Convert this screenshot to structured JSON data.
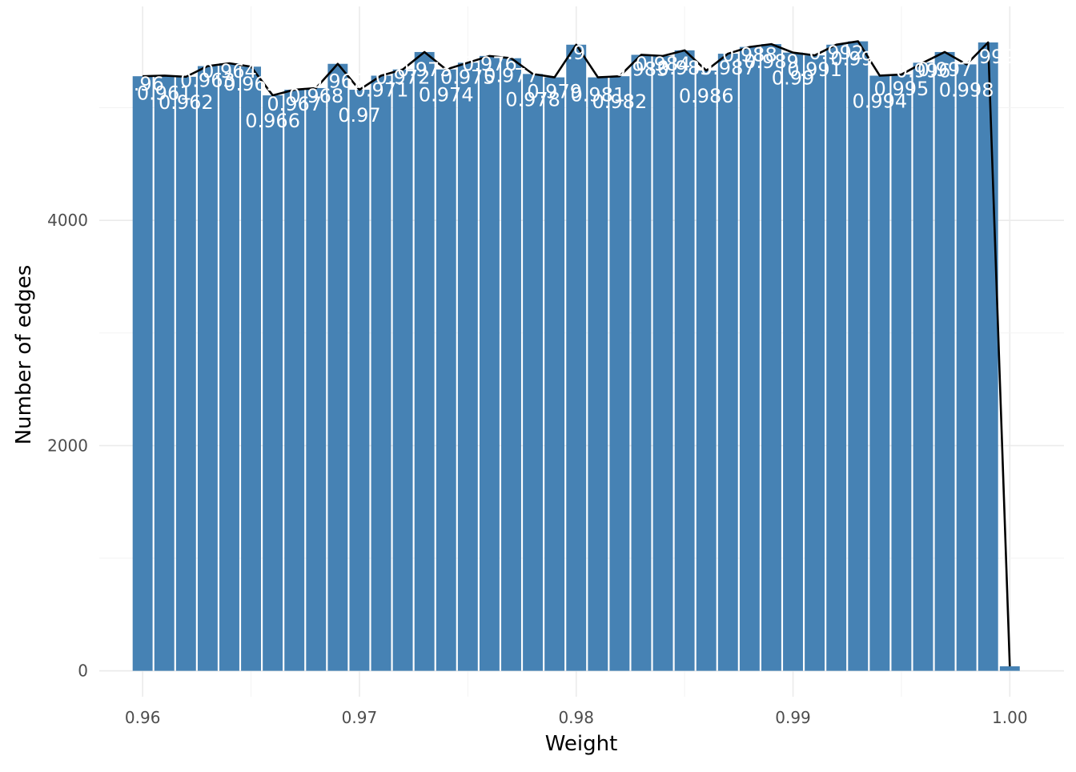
{
  "chart_data": {
    "type": "bar",
    "xlabel": "Weight",
    "ylabel": "Number of edges",
    "xlim": [
      0.958,
      1.0025
    ],
    "ylim": [
      -230,
      5900
    ],
    "x_ticks": [
      0.96,
      0.97,
      0.98,
      0.99,
      1.0
    ],
    "x_tick_labels": [
      "0.96",
      "0.97",
      "0.98",
      "0.99",
      "1.00"
    ],
    "y_ticks": [
      0,
      2000,
      4000
    ],
    "y_tick_labels": [
      "0",
      "2000",
      "4000"
    ],
    "grid": true,
    "legend": "none",
    "bar_color": "#4682b4",
    "line_color": "#000000",
    "label_color": "#ffffff",
    "x": [
      0.96,
      0.961,
      0.962,
      0.963,
      0.964,
      0.965,
      0.966,
      0.967,
      0.968,
      0.969,
      0.97,
      0.971,
      0.972,
      0.973,
      0.974,
      0.975,
      0.976,
      0.977,
      0.978,
      0.979,
      0.98,
      0.981,
      0.982,
      0.983,
      0.984,
      0.985,
      0.986,
      0.987,
      0.988,
      0.989,
      0.99,
      0.991,
      0.992,
      0.993,
      0.994,
      0.995,
      0.996,
      0.997,
      0.998,
      0.999,
      1.0
    ],
    "values": [
      5280,
      5285,
      5275,
      5370,
      5395,
      5365,
      5110,
      5160,
      5175,
      5390,
      5160,
      5285,
      5340,
      5495,
      5340,
      5400,
      5460,
      5440,
      5300,
      5270,
      5560,
      5270,
      5280,
      5470,
      5460,
      5510,
      5330,
      5480,
      5540,
      5565,
      5490,
      5465,
      5560,
      5590,
      5285,
      5295,
      5400,
      5495,
      5385,
      5580,
      40
    ],
    "labels": [
      "0.96",
      "0.961",
      "0.962",
      "0.963",
      "0.964",
      "0.965",
      "0.966",
      "0.967",
      "0.968",
      "0.969",
      "0.97",
      "0.971",
      "0.972",
      "0.973",
      "0.974",
      "0.975",
      "0.976",
      "0.977",
      "0.978",
      "0.979",
      "0.98",
      "0.981",
      "0.982",
      "0.983",
      "0.984",
      "0.985",
      "0.986",
      "0.987",
      "0.988",
      "0.989",
      "0.99",
      "0.991",
      "0.992",
      "0.993",
      "0.994",
      "0.995",
      "0.996",
      "0.997",
      "0.998",
      "0.999",
      ""
    ]
  }
}
